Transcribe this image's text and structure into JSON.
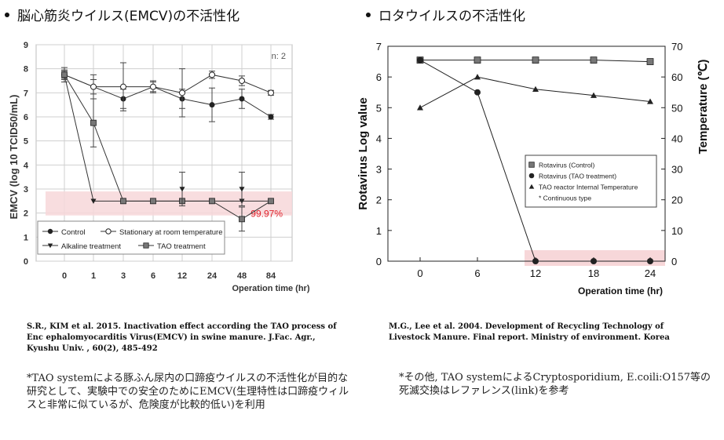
{
  "headings": {
    "left": "脳心筋炎ウイルス(EMCV)の不活性化",
    "right": "ロタウイルスの不活性化"
  },
  "chart_data": [
    {
      "type": "line",
      "ylabel": "EMCV (log 10 TCID50/mL)",
      "xlabel": "Operation time (hr)",
      "categories": [
        "0",
        "1",
        "3",
        "6",
        "12",
        "24",
        "48",
        "84"
      ],
      "ylim": [
        0,
        9
      ],
      "yticks": [
        "0",
        "1",
        "2",
        "3",
        "4",
        "5",
        "6",
        "7",
        "8",
        "9"
      ],
      "grid": true,
      "corner_label": "n: 2",
      "highlight_label": "99.97%",
      "highlight_band": [
        1.9,
        2.9
      ],
      "legend_position": "bottom-left",
      "series": [
        {
          "name": "Control",
          "marker": "filled-circle",
          "values": [
            7.75,
            7.25,
            6.75,
            7.25,
            6.75,
            6.5,
            6.75,
            6.0
          ],
          "err": [
            0.15,
            0.3,
            0.4,
            0.25,
            0.4,
            0.7,
            0.4,
            0.1
          ]
        },
        {
          "name": "Stationary at room temperature",
          "marker": "open-circle",
          "values": [
            7.75,
            7.25,
            7.25,
            7.25,
            7.0,
            7.75,
            7.5,
            7.0
          ],
          "err": [
            0.3,
            0.5,
            1.0,
            0.2,
            1.0,
            0.15,
            0.2,
            0.1
          ]
        },
        {
          "name": "Alkaline treatment",
          "marker": "filled-triangle-down",
          "values": [
            7.75,
            2.5,
            2.5,
            2.5,
            2.5,
            2.5,
            2.5,
            2.5
          ],
          "err": [
            0,
            0,
            0,
            0,
            0,
            0,
            0,
            0
          ]
        },
        {
          "name": "TAO treatment",
          "marker": "filled-square",
          "values": [
            7.75,
            5.75,
            2.5,
            2.5,
            2.5,
            2.5,
            1.75,
            2.5
          ],
          "err": [
            0.2,
            1.0,
            0,
            0,
            0,
            0,
            0.5,
            0
          ]
        },
        {
          "name": "",
          "marker": "filled-triangle-down",
          "values": [
            null,
            null,
            null,
            null,
            3.0,
            null,
            3.0,
            null
          ],
          "err": [
            0,
            0,
            0,
            0,
            0.7,
            0,
            0.7,
            0
          ]
        }
      ]
    },
    {
      "type": "line",
      "ylabel": "Rotavirus Log value",
      "y2label": "Temperature (℃)",
      "xlabel": "Operation time (hr)",
      "categories": [
        "0",
        "6",
        "12",
        "18",
        "24"
      ],
      "x": [
        0,
        6,
        12,
        18,
        24
      ],
      "ylim": [
        0,
        7
      ],
      "y2lim": [
        0,
        70
      ],
      "yticks": [
        "0",
        "1",
        "2",
        "3",
        "4",
        "5",
        "6",
        "7"
      ],
      "y2ticks": [
        "0",
        "10",
        "20",
        "30",
        "40",
        "50",
        "60",
        "70"
      ],
      "legend_position": "center-right",
      "legend_note": "* Continuous type",
      "series": [
        {
          "name": "Rotavirus (Control)",
          "marker": "filled-square",
          "axis": "left",
          "values": [
            6.55,
            6.55,
            6.55,
            6.55,
            6.5
          ]
        },
        {
          "name": "Rotavirus (TAO treatment)",
          "marker": "filled-circle",
          "axis": "left",
          "values": [
            6.55,
            5.5,
            0,
            0,
            0
          ]
        },
        {
          "name": "TAO reactor Internal Temperature",
          "marker": "filled-triangle",
          "axis": "right",
          "values": [
            50,
            60,
            56,
            54,
            52
          ]
        }
      ]
    }
  ],
  "citations": {
    "left": "S.R., KIM et al. 2015. Inactivation effect according the TAO process of Enc ephalomyocarditis Virus(EMCV) in swine manure. J.Fac. Agr., Kyushu Univ. , 60(2), 485-492",
    "right": "M.G., Lee et al. 2004. Development of Recycling Technology of Livestock Manure. Final report. Ministry of environment. Korea"
  },
  "notes": {
    "left": "*TAO systemによる豚ふん尿内の口蹄疫ウイルスの不活性化が目的な研究として、実験中での安全のためにEMCV(生理特性は口蹄疫ウィルスと非常に似ているが、危険度が比較的低い)を利用",
    "right": "*その他, TAO systemによるCryptosporidium, E.coili:O157等の死滅交換はレファレンス(link)を参考"
  },
  "colors": {
    "highlight_band": "#f7d7d9",
    "highlight_text": "#e0262f",
    "grid": "#cfcfcf",
    "line": "#222222"
  }
}
